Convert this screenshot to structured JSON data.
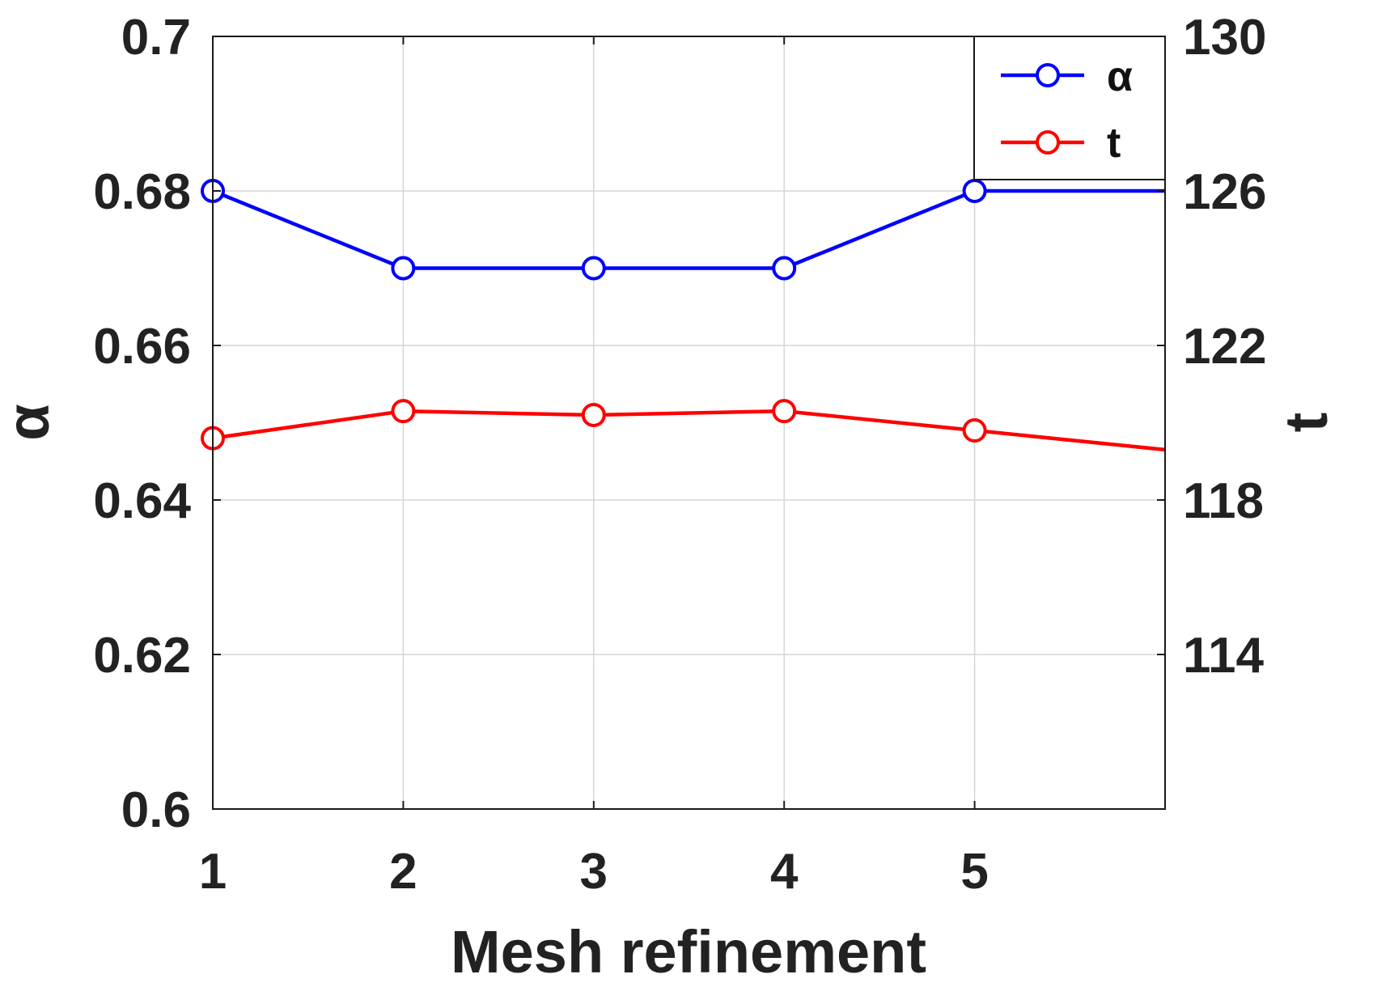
{
  "chart_data": {
    "type": "line",
    "x": [
      1,
      2,
      3,
      4,
      5,
      6
    ],
    "xticks": [
      "1",
      "2",
      "3",
      "4",
      "5"
    ],
    "xlim": [
      1,
      6
    ],
    "xlabel": "Mesh refinement",
    "ylabel_left": "α",
    "ylabel_right": "t",
    "ylim_left": [
      0.6,
      0.7
    ],
    "yticks_left": [
      "0.6",
      "0.62",
      "0.64",
      "0.66",
      "0.68",
      "0.7"
    ],
    "ylim_right": [
      110,
      130
    ],
    "yticks_right": [
      "114",
      "118",
      "122",
      "126",
      "130"
    ],
    "grid": true,
    "legend_position": "top-right",
    "series": [
      {
        "name": "α",
        "axis": "left",
        "color": "#0000ff",
        "marker": "circle",
        "values": [
          0.68,
          0.67,
          0.67,
          0.67,
          0.68,
          0.68
        ]
      },
      {
        "name": "t",
        "axis": "right",
        "color": "#ff0000",
        "marker": "circle",
        "values": [
          119.6,
          120.3,
          120.2,
          120.3,
          119.8,
          119.3
        ]
      }
    ]
  }
}
